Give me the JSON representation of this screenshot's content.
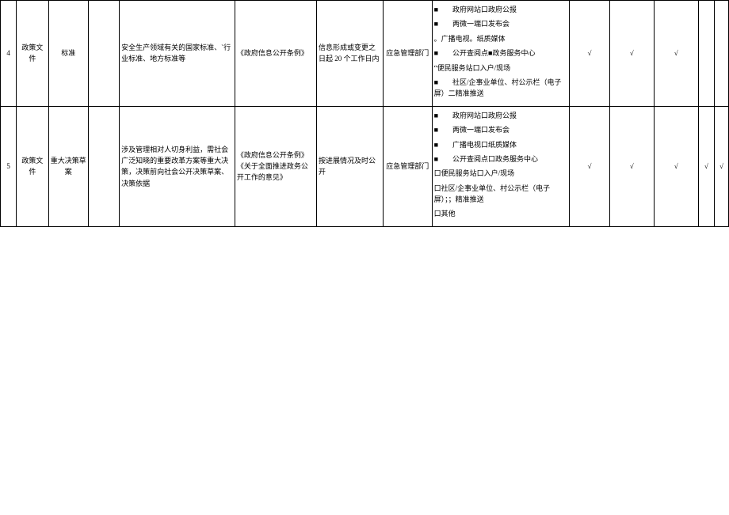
{
  "rows": [
    {
      "num": "4",
      "category": "政策文件",
      "subcategory": "标准",
      "blank": "",
      "content": "安全生产领域有关的国家标准、`行业标准、地方标准等",
      "basis": "《政府信息公开条例》",
      "timing": "信息形成或变更之日起 20 个工作日内",
      "dept": "应急管理部门",
      "channel_lines": [
        "■　　政府网站口政府公报",
        "■　　两微一端口发布会",
        "。广播电视。纸质媒体",
        "■　　公开查阅点■政务服务中心",
        "“便民服务站口入户/现场",
        "■　　社区/企事业单位、村公示栏（电子屏）二精准推送"
      ],
      "t1": "√",
      "t2": "√",
      "t3": "√",
      "t4": "",
      "t5": ""
    },
    {
      "num": "5",
      "category": "政策文件",
      "subcategory": "重大决策草案",
      "blank": "",
      "content": "涉及管理相对人切身利益，需社会广泛知晓的重要改革方案等重大决策，决策前向社会公开决策草案、决策依据",
      "basis": "《政府信息公开条例》《关于全面推进政务公开工作的意见》",
      "timing": "按进展情况及时公开",
      "dept": "应急管理部门",
      "channel_lines": [
        "■　　政府网站口政府公报",
        "■　　两微一端口发布会",
        "■　　广播电视口纸质媒体",
        "■　　公开查阅点口政务服务中心",
        "口便民服务站口入户/现场",
        "口社区/企事业单位、村公示栏（电子屏）；；精准推送",
        "口其他"
      ],
      "t1": "√",
      "t2": "√",
      "t3": "√",
      "t4": "√",
      "t5": "√"
    }
  ]
}
